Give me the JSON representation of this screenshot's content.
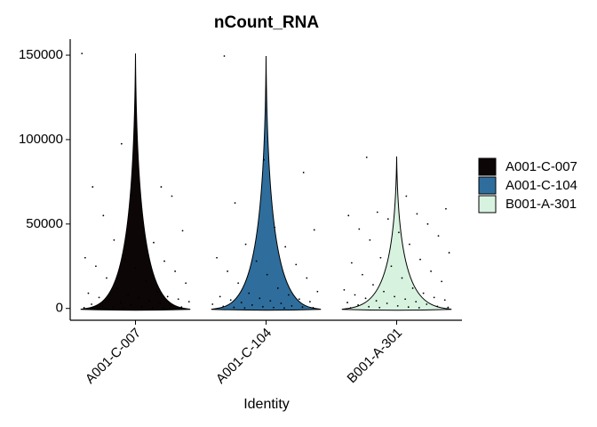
{
  "chart_data": {
    "type": "violin",
    "title": "nCount_RNA",
    "x_label": "Identity",
    "ylim": [
      -7000,
      159500
    ],
    "yticks": [
      0,
      50000,
      100000,
      150000
    ],
    "series": [
      {
        "name": "A001-C-007",
        "color": "#0d0606",
        "max": 151000,
        "points": [
          151000,
          97500,
          72000,
          72000,
          67000,
          66500,
          55000,
          48000,
          46000,
          40500,
          39000,
          30000,
          29000,
          28000,
          25000,
          24000,
          22000,
          18000,
          16000,
          15000,
          12000,
          10000,
          9000,
          8000,
          7000,
          6500,
          6000,
          5500,
          5000,
          4500,
          4000,
          3500,
          3000,
          2500,
          2000,
          1500,
          1200,
          1000,
          800,
          600,
          500,
          400,
          300,
          200
        ]
      },
      {
        "name": "A001-C-104",
        "color": "#2f6e9c",
        "max": 149500,
        "points": [
          149500,
          88000,
          80500,
          62500,
          48000,
          46500,
          38000,
          36500,
          30000,
          28000,
          26000,
          22000,
          20000,
          18000,
          15000,
          12000,
          10000,
          9000,
          8000,
          7000,
          6000,
          5500,
          5000,
          4500,
          4000,
          3500,
          3000,
          2500,
          2000,
          1500,
          1200,
          1000,
          800,
          600,
          500,
          400,
          300,
          200
        ]
      },
      {
        "name": "B001-A-301",
        "color": "#d8f2e0",
        "max": 90000,
        "points": [
          89500,
          66500,
          59000,
          57000,
          56000,
          55000,
          53000,
          50000,
          47000,
          45000,
          43000,
          40500,
          38000,
          33000,
          30000,
          29000,
          27000,
          25000,
          22000,
          20000,
          18000,
          16000,
          14000,
          12000,
          11000,
          10000,
          9000,
          8000,
          7000,
          6500,
          6000,
          5500,
          5000,
          4500,
          4000,
          3500,
          3000,
          2500,
          2000,
          1500,
          1200,
          1000,
          800,
          600,
          500,
          400,
          300
        ]
      }
    ]
  }
}
